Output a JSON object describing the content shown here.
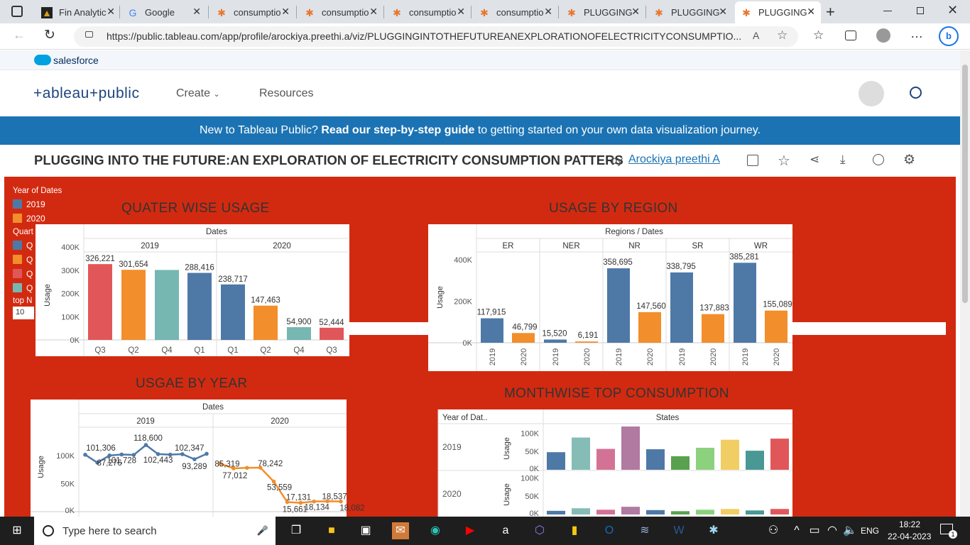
{
  "browser": {
    "tabs": [
      {
        "label": "Fin Analytic",
        "icon": "fin-analytics-icon"
      },
      {
        "label": "Google",
        "icon": "google-icon"
      },
      {
        "label": "consumptio",
        "icon": "tableau-icon"
      },
      {
        "label": "consumptio",
        "icon": "tableau-icon"
      },
      {
        "label": "consumptio",
        "icon": "tableau-icon"
      },
      {
        "label": "consumptio",
        "icon": "tableau-icon"
      },
      {
        "label": "PLUGGING",
        "icon": "tableau-icon"
      },
      {
        "label": "PLUGGING",
        "icon": "tableau-icon"
      },
      {
        "label": "PLUGGING",
        "icon": "tableau-icon"
      }
    ],
    "url": "https://public.tableau.com/app/profile/arockiya.preethi.a/viz/PLUGGINGINTOTHEFUTUREANEXPLORATIONOFELECTRICITYCONSUMPTIO..."
  },
  "site": {
    "salesforce": "salesforce",
    "logo": "+ableau+public",
    "nav": {
      "create": "Create",
      "resources": "Resources"
    },
    "banner_pre": "New to Tableau Public? ",
    "banner_link": "Read our step-by-step guide",
    "banner_post": " to getting started on your own data visualization journey.",
    "viz_title": "PLUGGING INTO THE FUTURE:AN EXPLORATION OF ELECTRICITY CONSUMPTION PATTERS",
    "by": "by",
    "author": "Arockiya preethi A"
  },
  "filters": {
    "year_title": "Year of Dates",
    "years": [
      {
        "label": "2019",
        "color": "#4e79a7"
      },
      {
        "label": "2020",
        "color": "#f28e2b"
      }
    ],
    "quarter_title": "Quart",
    "quarters": [
      {
        "label": "Q",
        "color": "#4e79a7"
      },
      {
        "label": "Q",
        "color": "#f28e2b"
      },
      {
        "label": "Q",
        "color": "#e15759"
      },
      {
        "label": "Q",
        "color": "#76b7b2"
      }
    ],
    "topn_title": "top N",
    "topn_value": "10"
  },
  "chart_data": [
    {
      "type": "bar",
      "title": "QUATER WISE USAGE",
      "column_header": "Dates",
      "groups": [
        "2019",
        "2020"
      ],
      "ylabel": "Usage",
      "yticks": [
        "400K",
        "300K",
        "200K",
        "100K",
        "0K"
      ],
      "ylim": [
        0,
        400000
      ],
      "bars": [
        {
          "group": "2019",
          "quarter": "Q3",
          "value": 326221,
          "label": "326,221",
          "color": "#e15759"
        },
        {
          "group": "2019",
          "quarter": "Q2",
          "value": 301654,
          "label": "301,654",
          "color": "#f28e2b"
        },
        {
          "group": "2019",
          "quarter": "Q4",
          "value": 301000,
          "label": "",
          "color": "#76b7b2"
        },
        {
          "group": "2019",
          "quarter": "Q1",
          "value": 288416,
          "label": "288,416",
          "color": "#4e79a7"
        },
        {
          "group": "2020",
          "quarter": "Q1",
          "value": 238717,
          "label": "238,717",
          "color": "#4e79a7"
        },
        {
          "group": "2020",
          "quarter": "Q2",
          "value": 147463,
          "label": "147,463",
          "color": "#f28e2b"
        },
        {
          "group": "2020",
          "quarter": "Q4",
          "value": 54900,
          "label": "54,900",
          "color": "#76b7b2"
        },
        {
          "group": "2020",
          "quarter": "Q3",
          "value": 52444,
          "label": "52,444",
          "color": "#e15759"
        }
      ]
    },
    {
      "type": "bar",
      "title": "USAGE BY REGION",
      "column_header": "Regions / Dates",
      "ylabel": "Usage",
      "yticks": [
        "400K",
        "200K",
        "0K"
      ],
      "ylim": [
        0,
        400000
      ],
      "regions": [
        {
          "name": "ER",
          "values": [
            117915,
            46799
          ],
          "labels": [
            "117,915",
            "46,799"
          ]
        },
        {
          "name": "NER",
          "values": [
            15520,
            6191
          ],
          "labels": [
            "15,520",
            "6,191"
          ]
        },
        {
          "name": "NR",
          "values": [
            358695,
            147560
          ],
          "labels": [
            "358,695",
            "147,560"
          ]
        },
        {
          "name": "SR",
          "values": [
            338795,
            137883
          ],
          "labels": [
            "338,795",
            "137,883"
          ]
        },
        {
          "name": "WR",
          "values": [
            385281,
            155089
          ],
          "labels": [
            "385,281",
            "155,089"
          ]
        }
      ],
      "years": [
        "2019",
        "2020"
      ],
      "colors": [
        "#4e79a7",
        "#f28e2b"
      ]
    },
    {
      "type": "line",
      "title": "USGAE BY YEAR",
      "column_header": "Dates",
      "groups": [
        "2019",
        "2020"
      ],
      "ylabel": "Usage",
      "yticks": [
        "100K",
        "50K",
        "0K"
      ],
      "series": [
        {
          "year": "2019",
          "color": "#4e79a7",
          "values": [
            101306,
            87276,
            100000,
            101728,
            101000,
            118600,
            102443,
            101500,
            102347,
            93289,
            103000
          ],
          "labels": [
            "101,306",
            "87,276",
            "",
            "101,728",
            "",
            "118,600",
            "102,443",
            "",
            "102,347",
            "93,289",
            ""
          ]
        },
        {
          "year": "2020",
          "color": "#f28e2b",
          "values": [
            85319,
            77012,
            78000,
            78242,
            53559,
            17131,
            15661,
            18134,
            18537,
            18082
          ],
          "labels": [
            "85,319",
            "77,012",
            "",
            "78,242",
            "53,559",
            "17,131",
            "15,661",
            "18,134",
            "18,537",
            "18,082"
          ]
        }
      ]
    },
    {
      "type": "bar",
      "title": "MONTHWISE TOP CONSUMPTION",
      "row_header": "Year of Dat..",
      "column_header": "States",
      "ylabel": "Usage",
      "rows": [
        {
          "year": "2019",
          "yticks": [
            "100K",
            "50K",
            "0K"
          ],
          "values": [
            48000,
            88000,
            57000,
            118000,
            56000,
            37000,
            60000,
            82000,
            52000,
            85000
          ]
        },
        {
          "year": "2020",
          "yticks": [
            "100K",
            "50K",
            "0K"
          ],
          "values": [
            10000,
            17000,
            13000,
            21000,
            12000,
            9000,
            13000,
            15000,
            11000,
            15000
          ]
        }
      ],
      "colors": [
        "#4e79a7",
        "#86bcb6",
        "#d37295",
        "#b07aa1",
        "#4e79a7",
        "#59a14f",
        "#8cd17d",
        "#f1ce63",
        "#499894",
        "#e15759"
      ]
    }
  ],
  "taskbar": {
    "search_placeholder": "Type here to search",
    "lang": "ENG",
    "time": "18:22",
    "date": "22-04-2023",
    "notif_count": "1"
  }
}
